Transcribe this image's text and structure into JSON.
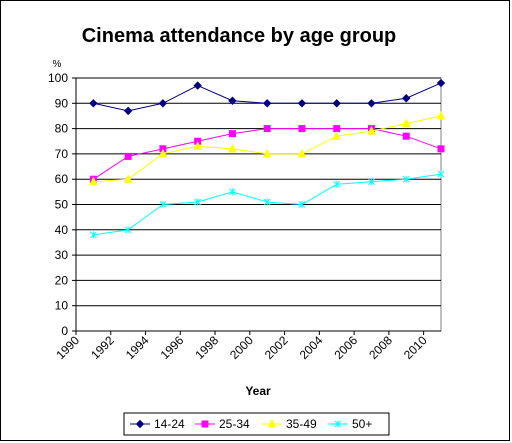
{
  "chart_data": {
    "type": "line",
    "title": "Cinema attendance by age group",
    "xlabel": "Year",
    "ylabel": "%",
    "ylim": [
      0,
      100
    ],
    "yticks": [
      0,
      10,
      20,
      30,
      40,
      50,
      60,
      70,
      80,
      90,
      100
    ],
    "xlim": [
      1990,
      2011
    ],
    "xticks": [
      1990,
      1992,
      1994,
      1996,
      1998,
      2000,
      2002,
      2004,
      2006,
      2008,
      2010
    ],
    "grid": true,
    "legend_position": "bottom",
    "x": [
      1991,
      1993,
      1995,
      1997,
      1999,
      2001,
      2003,
      2005,
      2007,
      2009,
      2011
    ],
    "series": [
      {
        "name": "14-24",
        "color": "#000080",
        "marker": "diamond",
        "values": [
          90,
          87,
          90,
          97,
          91,
          90,
          90,
          90,
          90,
          92,
          98
        ]
      },
      {
        "name": "25-34",
        "color": "#ff00ff",
        "marker": "square",
        "values": [
          60,
          69,
          72,
          75,
          78,
          80,
          80,
          80,
          80,
          77,
          72
        ]
      },
      {
        "name": "35-49",
        "color": "#ffff00",
        "marker": "triangle",
        "values": [
          59,
          60,
          70,
          73,
          72,
          70,
          70,
          77,
          79,
          82,
          85
        ]
      },
      {
        "name": "50+",
        "color": "#00ffff",
        "marker": "star",
        "values": [
          38,
          40,
          50,
          51,
          55,
          51,
          50,
          58,
          59,
          60,
          62
        ]
      }
    ]
  }
}
